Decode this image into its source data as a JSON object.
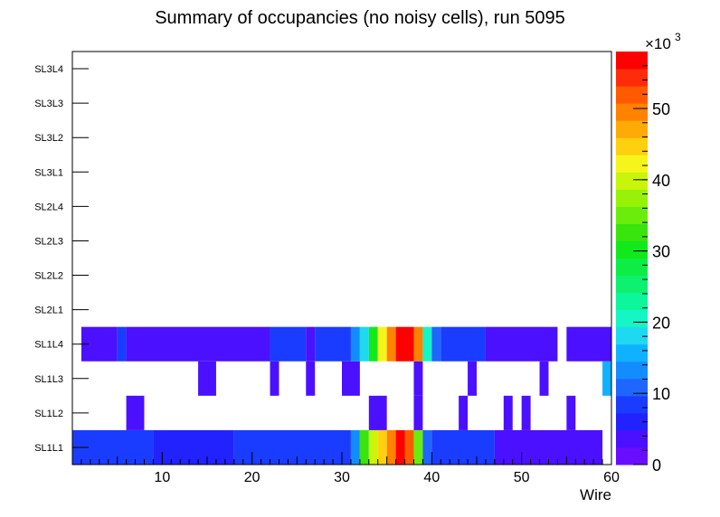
{
  "chart_data": {
    "type": "heatmap",
    "title": "Summary of occupancies (no noisy cells), run 5095",
    "xlabel": "Wire",
    "ylabel": "",
    "xlim": [
      0,
      60
    ],
    "x_ticks": [
      10,
      20,
      30,
      40,
      50,
      60
    ],
    "y_categories": [
      "SL1L1",
      "SL1L2",
      "SL1L3",
      "SL1L4",
      "SL2L1",
      "SL2L2",
      "SL2L3",
      "SL2L4",
      "SL3L1",
      "SL3L2",
      "SL3L3",
      "SL3L4"
    ],
    "colorbar": {
      "min": 0,
      "max": 58000,
      "multiplier_label": "×10",
      "multiplier_exponent": "3",
      "tick_values": [
        0,
        10000,
        20000,
        30000,
        40000,
        50000
      ],
      "tick_labels": [
        "0",
        "10",
        "20",
        "30",
        "40",
        "50"
      ],
      "colors": [
        "#6a0dff",
        "#4b10ff",
        "#2222ff",
        "#1a3cff",
        "#1f66ff",
        "#138cff",
        "#0fb2ff",
        "#1fd8f2",
        "#15f5c6",
        "#0cf69c",
        "#0df070",
        "#0ced46",
        "#11e91b",
        "#3ae40e",
        "#6bed0c",
        "#97f208",
        "#c8f50a",
        "#f5f51c",
        "#ffd00e",
        "#ffaa05",
        "#ff8200",
        "#ff5a00",
        "#ff2c0a",
        "#ff0000"
      ]
    },
    "rows": [
      {
        "row": "SL1L1",
        "cells": [
          [
            0,
            9,
            9000
          ],
          [
            9,
            18,
            5000
          ],
          [
            18,
            31,
            9000
          ],
          [
            31,
            32,
            13500
          ],
          [
            32,
            33,
            33000
          ],
          [
            33,
            34,
            40000
          ],
          [
            34,
            35,
            45000
          ],
          [
            35,
            36,
            50000
          ],
          [
            36,
            37,
            56000
          ],
          [
            37,
            38,
            53000
          ],
          [
            38,
            39,
            36000
          ],
          [
            39,
            40,
            11000
          ],
          [
            40,
            47,
            9000
          ],
          [
            47,
            59,
            4500
          ]
        ]
      },
      {
        "row": "SL1L2",
        "cells": [
          [
            6,
            8,
            3000
          ],
          [
            33,
            35,
            3000
          ],
          [
            38,
            39,
            3000
          ],
          [
            43,
            44,
            3000
          ],
          [
            48,
            49,
            3000
          ],
          [
            50,
            51,
            3000
          ],
          [
            55,
            56,
            3000
          ]
        ]
      },
      {
        "row": "SL1L3",
        "cells": [
          [
            14,
            16,
            3000
          ],
          [
            22,
            23,
            3000
          ],
          [
            26,
            27,
            3000
          ],
          [
            30,
            32,
            3000
          ],
          [
            38,
            39,
            3000
          ],
          [
            44,
            45,
            3000
          ],
          [
            52,
            53,
            3000
          ],
          [
            59,
            60,
            16500
          ]
        ]
      },
      {
        "row": "SL1L4",
        "cells": [
          [
            1,
            5,
            4000
          ],
          [
            5,
            6,
            8500
          ],
          [
            6,
            22,
            4000
          ],
          [
            22,
            26,
            7500
          ],
          [
            26,
            27,
            4000
          ],
          [
            27,
            31,
            7500
          ],
          [
            31,
            32,
            13500
          ],
          [
            32,
            33,
            17000
          ],
          [
            33,
            34,
            30000
          ],
          [
            34,
            35,
            43000
          ],
          [
            35,
            36,
            50000
          ],
          [
            36,
            38,
            56000
          ],
          [
            38,
            39,
            50000
          ],
          [
            39,
            40,
            20000
          ],
          [
            40,
            41,
            11000
          ],
          [
            41,
            46,
            7500
          ],
          [
            46,
            54,
            4000
          ],
          [
            55,
            60,
            4000
          ]
        ]
      }
    ]
  }
}
